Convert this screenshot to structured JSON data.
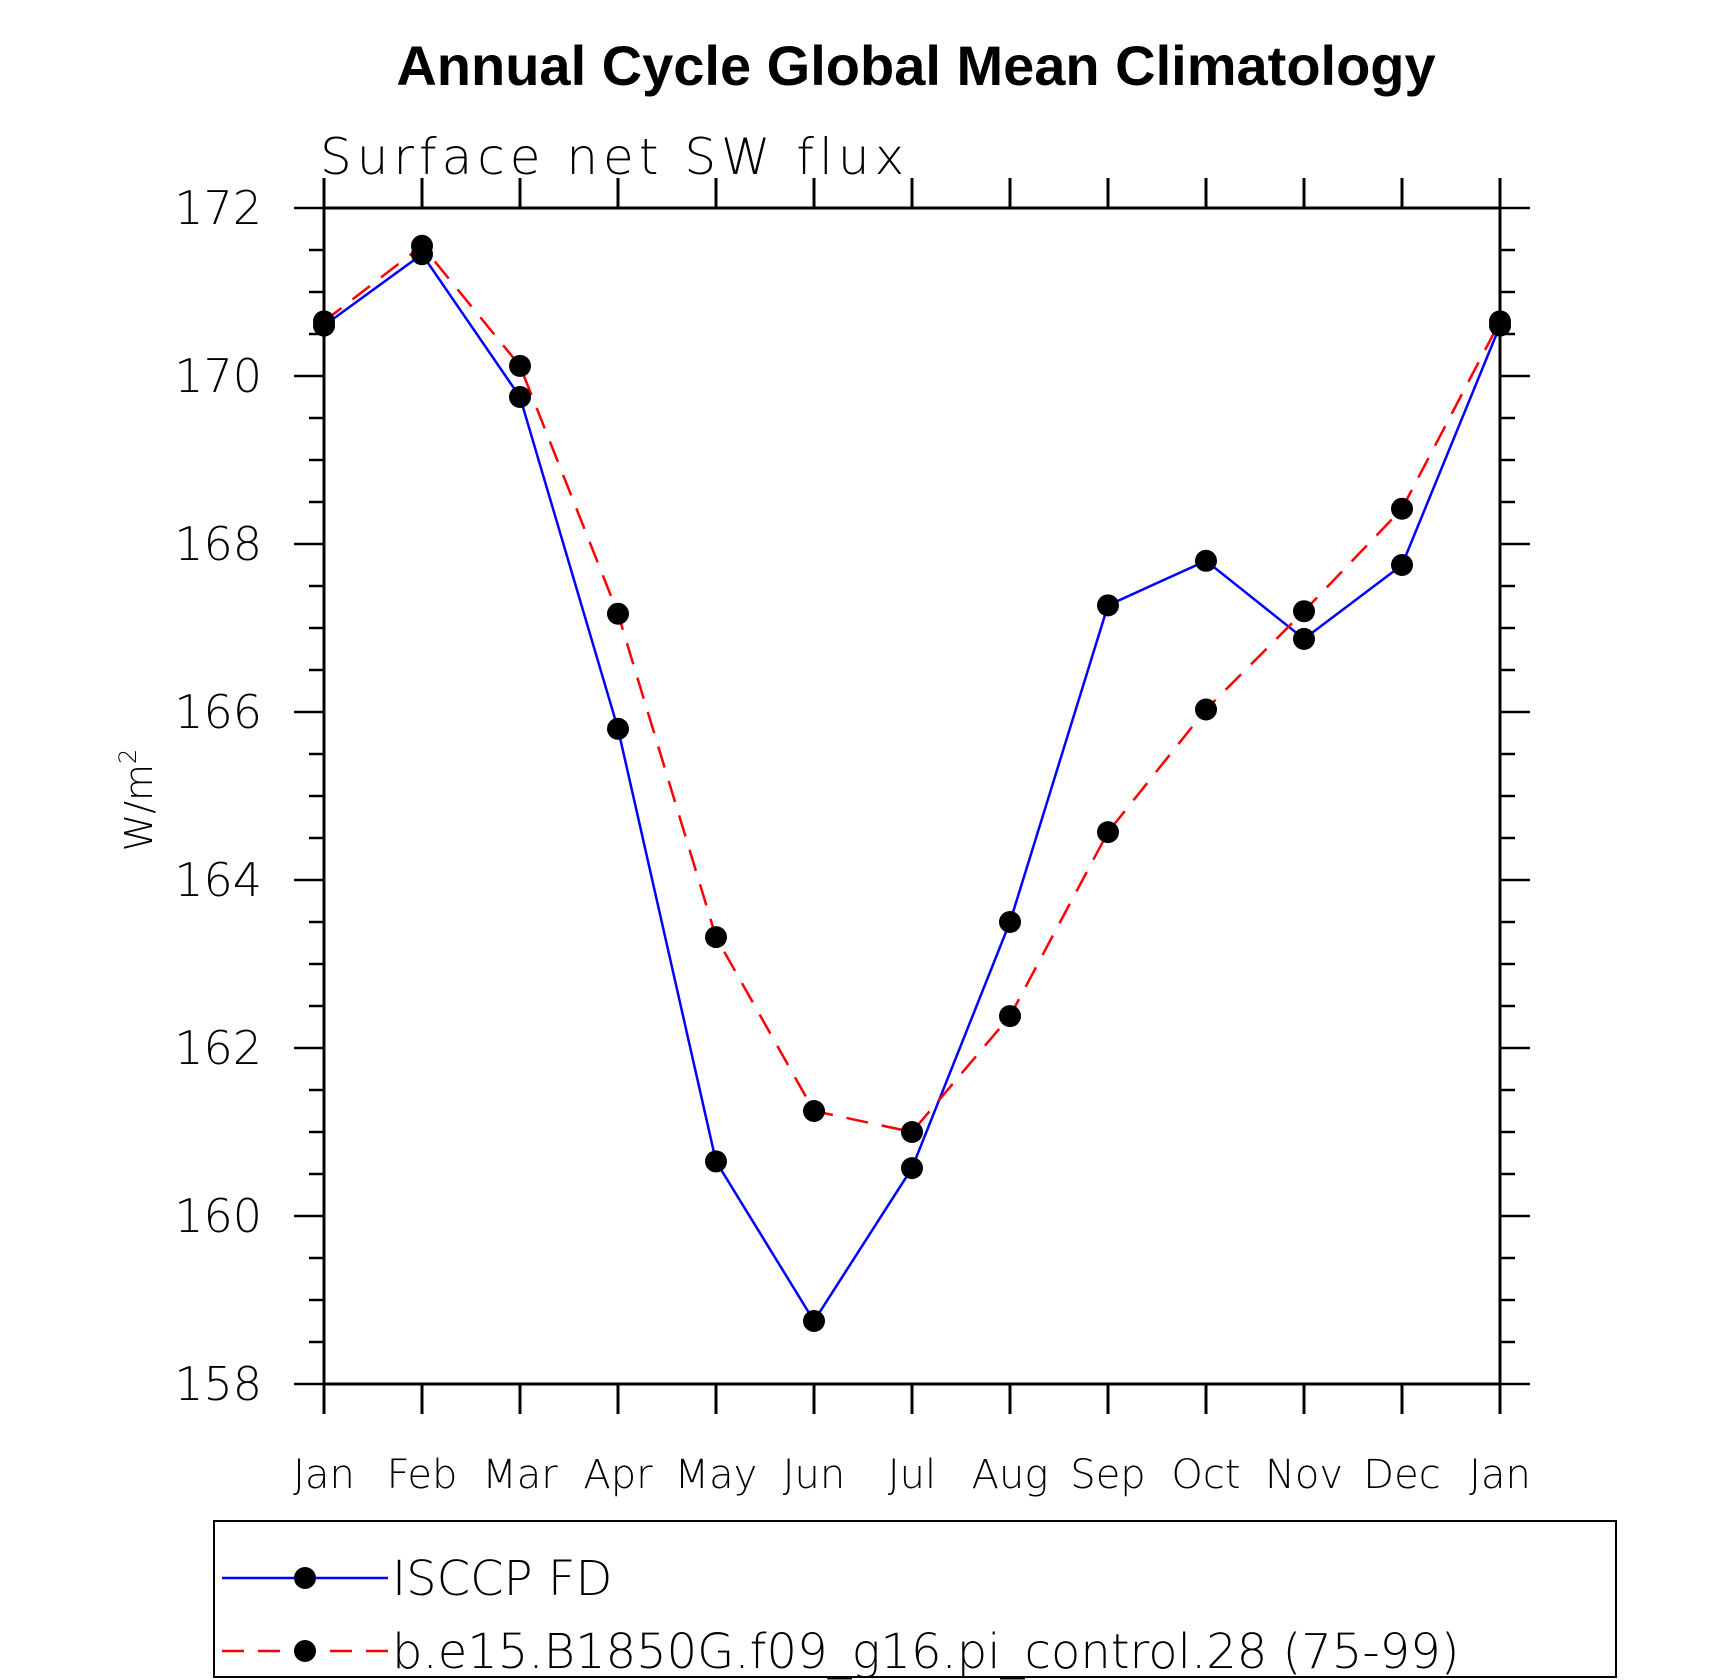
{
  "chart_data": {
    "type": "line",
    "title": "Annual Cycle Global Mean Climatology",
    "subtitle": "Surface net SW flux",
    "ylabel": "W/m",
    "ylabel_superscript": "2",
    "xlabel": "",
    "categories": [
      "Jan",
      "Feb",
      "Mar",
      "Apr",
      "May",
      "Jun",
      "Jul",
      "Aug",
      "Sep",
      "Oct",
      "Nov",
      "Dec",
      "Jan"
    ],
    "ylim": [
      158,
      172
    ],
    "yticks": [
      158,
      160,
      162,
      164,
      166,
      168,
      170,
      172
    ],
    "y_minor_step": 0.5,
    "legend_position": "bottom",
    "series": [
      {
        "name": "ISCCP FD",
        "color": "#0000ff",
        "dashed": false,
        "values": [
          170.6,
          171.45,
          169.75,
          165.8,
          160.65,
          158.75,
          160.57,
          163.5,
          167.27,
          167.8,
          166.87,
          167.75,
          170.6
        ]
      },
      {
        "name": "b.e15.B1850G.f09_g16.pi_control.28 (75-99)",
        "color": "#ff0000",
        "dashed": true,
        "values": [
          170.65,
          171.55,
          170.12,
          167.17,
          163.32,
          161.25,
          161.0,
          162.38,
          164.57,
          166.03,
          167.2,
          168.42,
          170.65
        ]
      }
    ],
    "marker_color": "#000000"
  }
}
